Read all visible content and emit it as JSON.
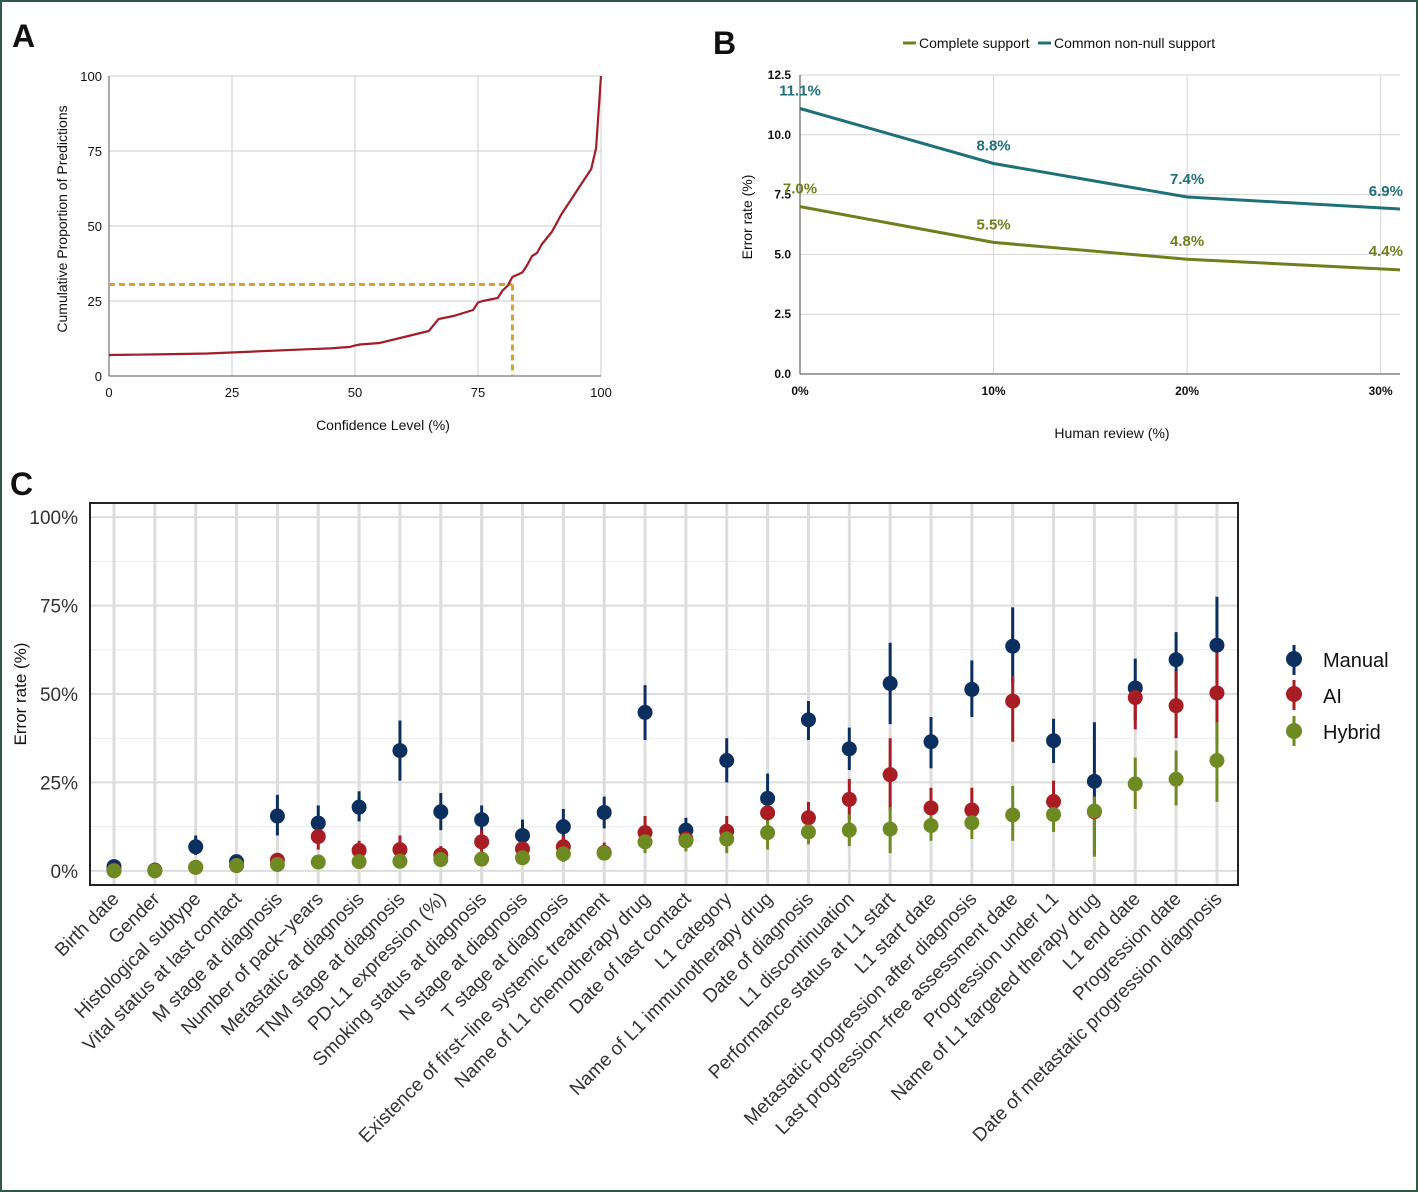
{
  "panels": {
    "a_label": "A",
    "b_label": "B",
    "c_label": "C"
  },
  "colors": {
    "panel_a_line": "#a11d27",
    "panel_a_guide": "#d4a52a",
    "complete_support": "#6f7f1e",
    "common_support": "#1f7078",
    "manual": "#0b2f5e",
    "ai": "#a81c24",
    "hybrid": "#6f8a23",
    "frame": "#2f5a48"
  },
  "chart_data": [
    {
      "id": "A",
      "type": "line",
      "xlabel": "Confidence Level (%)",
      "ylabel": "Cumulative Proportion of Predictions",
      "xlim": [
        0,
        100
      ],
      "ylim": [
        0,
        100
      ],
      "xticks": [
        0,
        25,
        50,
        75,
        100
      ],
      "yticks": [
        0,
        25,
        50,
        75,
        100
      ],
      "grid": true,
      "series": [
        {
          "x": [
            0,
            5,
            10,
            20,
            30,
            40,
            45,
            49,
            50,
            51,
            55,
            60,
            65,
            66,
            67,
            70,
            74,
            75,
            76,
            79,
            80,
            81,
            82,
            84,
            85,
            86,
            87,
            88,
            90,
            92,
            94,
            96,
            98,
            99,
            100
          ],
          "values": [
            7,
            7.1,
            7.2,
            7.5,
            8.2,
            8.9,
            9.2,
            9.7,
            10.2,
            10.5,
            11,
            13,
            15,
            17,
            19,
            20,
            22,
            24.5,
            25,
            26,
            28.5,
            30,
            33,
            34.5,
            37,
            40,
            41,
            44,
            48,
            54,
            59,
            64,
            69,
            76,
            100
          ]
        }
      ],
      "annotations": [
        {
          "type": "guide",
          "x": 82,
          "y": 30.5
        }
      ]
    },
    {
      "id": "B",
      "type": "line",
      "xlabel": "Human review (%)",
      "ylabel": "Error rate (%)",
      "xlim": [
        0,
        31
      ],
      "ylim": [
        0,
        12.5
      ],
      "xticks": [
        0,
        10,
        20,
        30
      ],
      "xticklabels": [
        "0%",
        "10%",
        "20%",
        "30%"
      ],
      "yticks": [
        0,
        2.5,
        5,
        7.5,
        10,
        12.5
      ],
      "yticklabels": [
        "0.0",
        "2.5",
        "5.0",
        "7.5",
        "10.0",
        "12.5"
      ],
      "legend_position": "top",
      "grid": true,
      "series": [
        {
          "name": "Complete support",
          "x": [
            0,
            10,
            20,
            31
          ],
          "values": [
            7.0,
            5.5,
            4.8,
            4.35
          ],
          "labels": [
            {
              "x": 0,
              "y": 7.0,
              "text": "7.0%"
            },
            {
              "x": 10,
              "y": 5.5,
              "text": "5.5%"
            },
            {
              "x": 20,
              "y": 4.8,
              "text": "4.8%"
            },
            {
              "x": 30,
              "y": 4.4,
              "text": "4.4%"
            }
          ]
        },
        {
          "name": "Common non-null support",
          "x": [
            0,
            10,
            20,
            31
          ],
          "values": [
            11.1,
            8.8,
            7.4,
            6.9
          ],
          "labels": [
            {
              "x": 0,
              "y": 11.1,
              "text": "11.1%"
            },
            {
              "x": 10,
              "y": 8.8,
              "text": "8.8%"
            },
            {
              "x": 20,
              "y": 7.4,
              "text": "7.4%"
            },
            {
              "x": 30,
              "y": 6.9,
              "text": "6.9%"
            }
          ]
        }
      ]
    },
    {
      "id": "C",
      "type": "scatter",
      "ylabel": "Error rate (%)",
      "ylim": [
        -4,
        104
      ],
      "yticks": [
        0,
        25,
        50,
        75,
        100
      ],
      "yticklabels": [
        "0%",
        "25%",
        "50%",
        "75%",
        "100%"
      ],
      "legend_position": "right",
      "grid": true,
      "categories": [
        "Birth date",
        "Gender",
        "Histological subtype",
        "Vital status at last contact",
        "M stage at diagnosis",
        "Number of pack−years",
        "Metastatic at diagnosis",
        "TNM stage at diagnosis",
        "PD-L1 expression (%)",
        "Smoking status at diagnosis",
        "N stage at diagnosis",
        "T stage at diagnosis",
        "Existence of first−line systemic treatment",
        "Name of L1 chemotherapy drug",
        "Date of last contact",
        "L1 category",
        "Name of L1 immunotherapy drug",
        "Date of diagnosis",
        "L1 discontinuation",
        "Performance status at L1 start",
        "L1 start date",
        "Metastatic progression after diagnosis",
        "Last progression−free assessment date",
        "Progression under L1",
        "Name of L1 targeted therapy drug",
        "L1 end date",
        "Progression date",
        "Date of metastatic progression diagnosis"
      ],
      "series": [
        {
          "name": "Manual",
          "values": [
            1.2,
            0.2,
            6.8,
            2.6,
            15.5,
            13.5,
            18,
            34,
            16.7,
            14.5,
            10,
            12.5,
            16.5,
            44.8,
            11.5,
            31.2,
            20.5,
            42.7,
            34.5,
            53,
            36.5,
            51.3,
            63.5,
            36.8,
            25.3,
            51.7,
            59.7,
            63.8
          ],
          "low": [
            0,
            0,
            4.5,
            1,
            10,
            9,
            14,
            25.5,
            11.5,
            10.5,
            6,
            8,
            12,
            37,
            8.5,
            25,
            14.5,
            37,
            28.5,
            41.5,
            29,
            43.5,
            53,
            30.5,
            4.5,
            42.5,
            51,
            50
          ],
          "high": [
            2.8,
            0.6,
            10,
            4.5,
            21.5,
            18.5,
            22.5,
            42.5,
            22,
            18.5,
            14.5,
            17.5,
            21,
            52.5,
            15,
            37.5,
            27.5,
            48,
            40.5,
            64.5,
            43.5,
            59.5,
            74.5,
            43,
            42,
            60,
            67.5,
            77.5
          ]
        },
        {
          "name": "AI",
          "values": [
            0.2,
            0.1,
            1,
            1.5,
            3,
            9.7,
            5.8,
            6,
            4.5,
            8.2,
            6.2,
            6.8,
            5.2,
            10.8,
            9,
            11.2,
            16.4,
            15,
            20.2,
            27.2,
            17.8,
            17.2,
            48,
            19.6,
            16.7,
            49,
            46.7,
            50.3
          ],
          "low": [
            0,
            0,
            0,
            0.5,
            1.5,
            6,
            3.5,
            3,
            2,
            5,
            3.5,
            4,
            3,
            7,
            6.5,
            8,
            12,
            11.5,
            14.5,
            17,
            12.5,
            11.5,
            36.5,
            14.5,
            12.5,
            40,
            37.5,
            36
          ],
          "high": [
            0.6,
            0.3,
            2,
            3,
            5,
            13.5,
            8.5,
            10,
            7,
            11.5,
            9,
            10,
            8,
            15.5,
            12,
            15.5,
            21,
            19.5,
            26,
            37.5,
            23.5,
            23.5,
            55,
            25.5,
            21,
            53.5,
            56.5,
            62
          ]
        },
        {
          "name": "Hybrid",
          "values": [
            0,
            0,
            1,
            1.5,
            1.8,
            2.5,
            2.6,
            2.7,
            3.2,
            3.3,
            3.7,
            4.8,
            5,
            8.2,
            8.5,
            9,
            10.8,
            11,
            11.5,
            11.8,
            12.8,
            13.6,
            15.8,
            15.9,
            16.9,
            24.6,
            25.9,
            31.2
          ],
          "low": [
            0,
            0,
            0,
            0.5,
            0.5,
            1,
            1,
            1,
            1.5,
            1.5,
            2,
            2.5,
            3,
            5,
            5.5,
            5,
            6,
            7.5,
            7,
            5,
            8.5,
            9,
            8.5,
            11,
            4,
            17.5,
            18.5,
            19.5
          ],
          "high": [
            0.5,
            0.3,
            2,
            2.5,
            3.5,
            4,
            4.5,
            4.5,
            5,
            5.5,
            6,
            7,
            7,
            11.5,
            11,
            13,
            15,
            14.5,
            16,
            18,
            17.5,
            18,
            24,
            21.5,
            21,
            32,
            34,
            42
          ]
        }
      ]
    }
  ]
}
